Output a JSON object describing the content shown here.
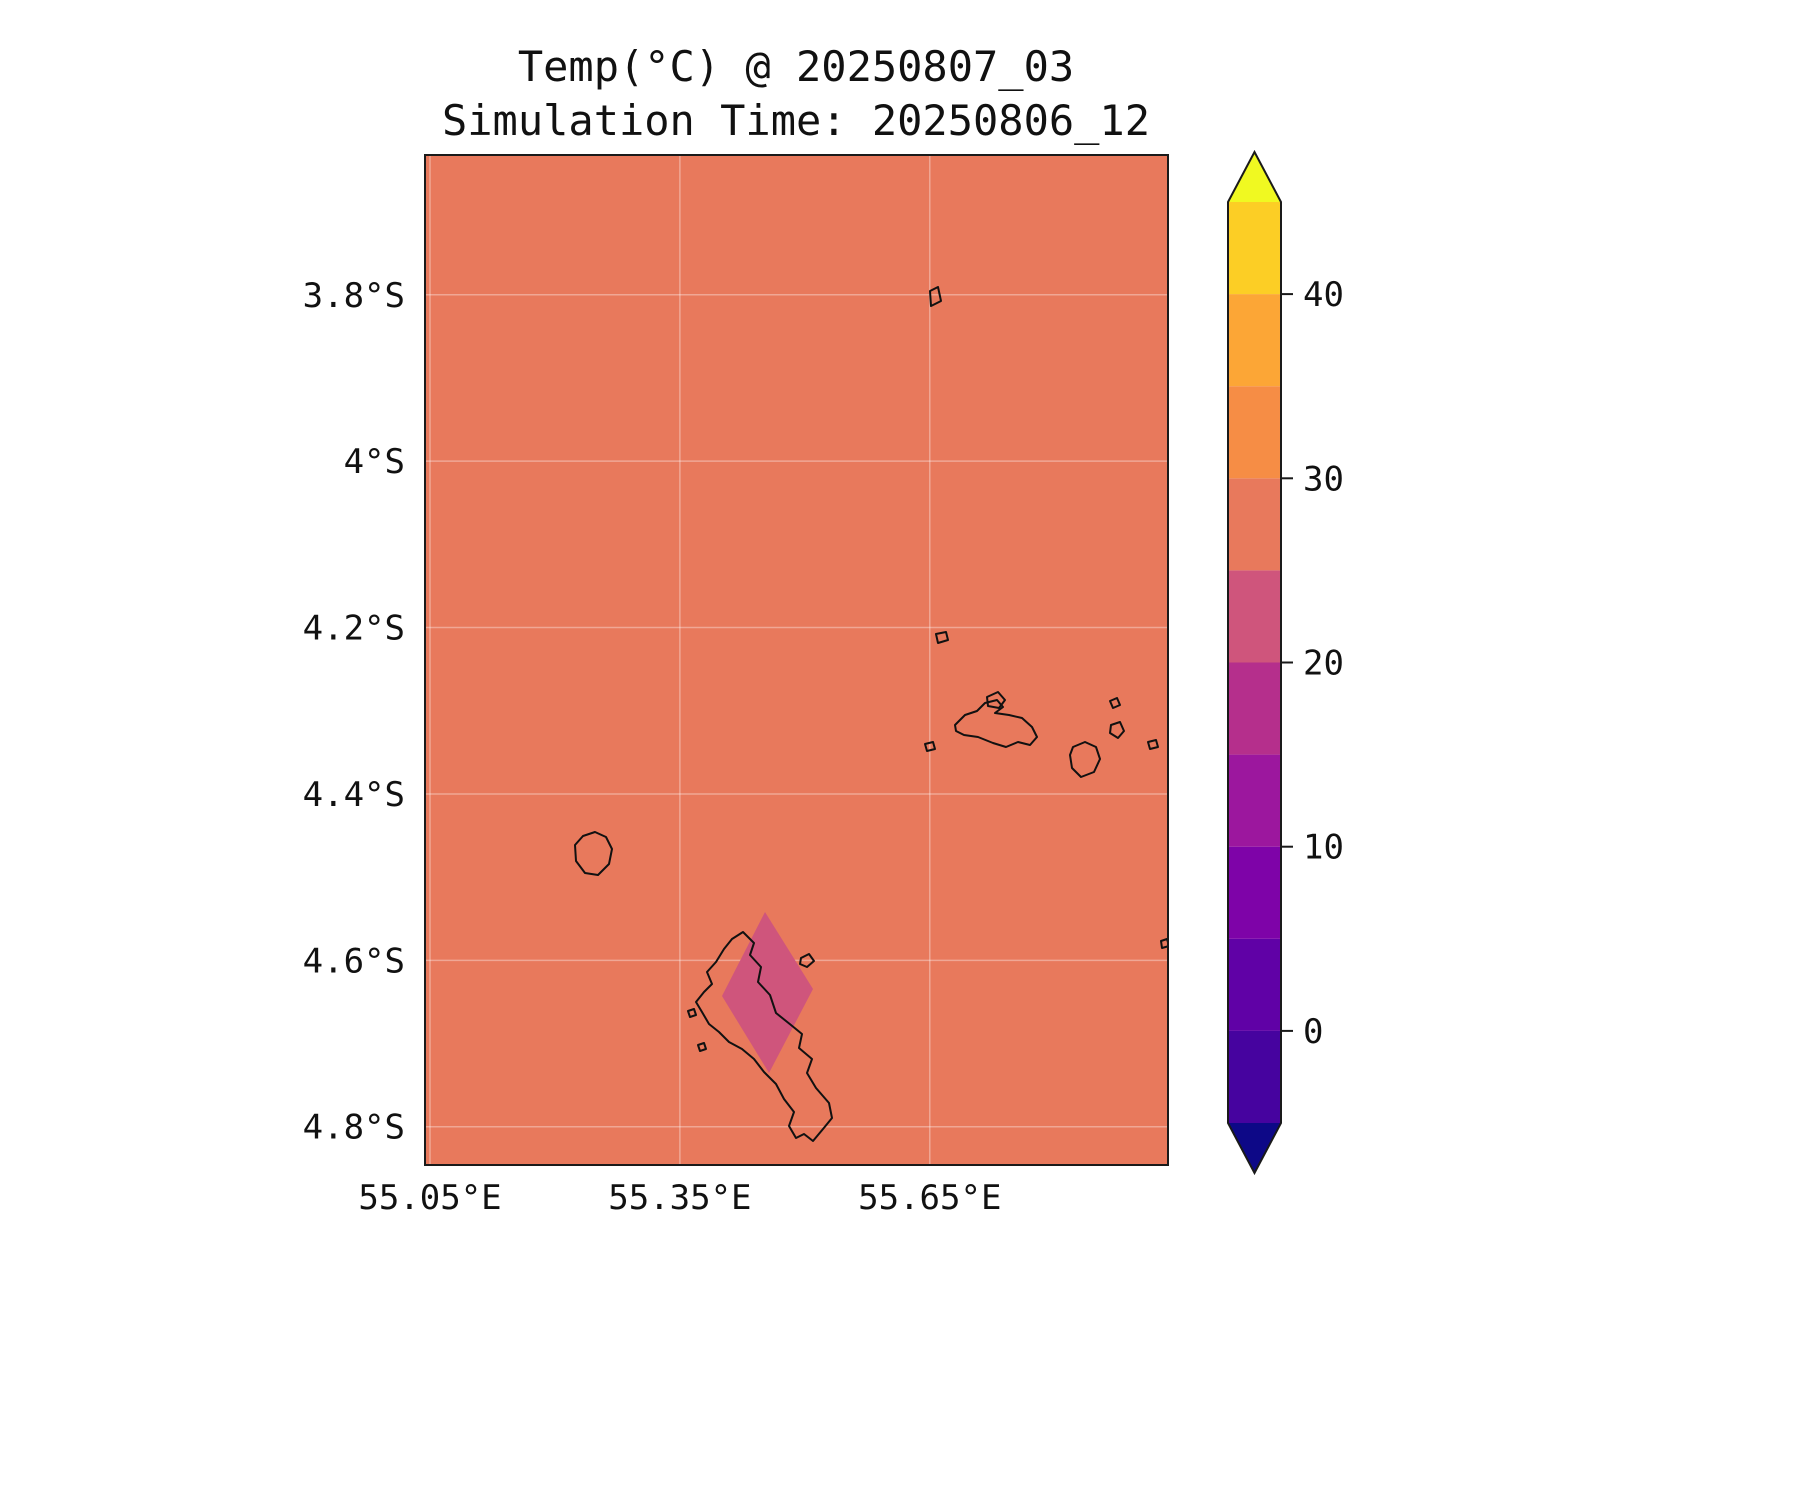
{
  "chart_data": {
    "type": "heatmap",
    "title": "Temp(°C) @ 20250807_03",
    "subtitle": "Simulation Time: 20250806_12",
    "variable_label": "Temp(°C)",
    "valid_time_label": "20250807_03",
    "simulation_time_label": "20250806_12",
    "legend_position": "right",
    "grid": true,
    "x_axis": {
      "range": [
        55.044,
        55.936
      ],
      "ticks": [
        {
          "value": 55.05,
          "label": "55.05°E"
        },
        {
          "value": 55.35,
          "label": "55.35°E"
        },
        {
          "value": 55.65,
          "label": "55.65°E"
        }
      ]
    },
    "y_axis": {
      "range": [
        -4.846,
        -3.632
      ],
      "ticks": [
        {
          "value": -3.8,
          "label": "3.8°S"
        },
        {
          "value": -4.0,
          "label": "4°S"
        },
        {
          "value": -4.2,
          "label": "4.2°S"
        },
        {
          "value": -4.4,
          "label": "4.4°S"
        },
        {
          "value": -4.6,
          "label": "4.6°S"
        },
        {
          "value": -4.8,
          "label": "4.8°S"
        }
      ]
    },
    "colorbar": {
      "extend": "both",
      "levels": [
        -5,
        0,
        5,
        10,
        15,
        20,
        25,
        30,
        35,
        40,
        45
      ],
      "band_colors": [
        "#46039f",
        "#6001a6",
        "#7e03a8",
        "#9c179e",
        "#b52f8c",
        "#cf557c",
        "#e8795c",
        "#f68d45",
        "#fca636",
        "#fcce25"
      ],
      "under_color": "#0d0887",
      "over_color": "#f0f921",
      "tick_values": [
        0,
        10,
        20,
        30,
        40
      ],
      "tick_labels": [
        "0",
        "10",
        "20",
        "30",
        "40"
      ]
    },
    "field_summary": {
      "dominant_band": "25-30 °C",
      "dominant_color": "#e8795c",
      "cool_patch": {
        "band": "20-25 °C",
        "color": "#cf557c",
        "approx_center_lon": 55.455,
        "approx_center_lat": -4.655
      }
    }
  },
  "map": {
    "sea_color": "#e8795c",
    "coastline_color": "#111111",
    "graticule_color": "rgba(255,255,255,0.35)",
    "cool_patch_color": "#cf557c",
    "cool_patch_polygon": [
      [
        340,
        757
      ],
      [
        388,
        834
      ],
      [
        344,
        918
      ],
      [
        297,
        841
      ]
    ],
    "islands": [
      {
        "id": "islet-north",
        "points": [
          [
            505,
            136
          ],
          [
            513,
            132
          ],
          [
            516,
            146
          ],
          [
            506,
            151
          ]
        ]
      },
      {
        "id": "islet-mid",
        "points": [
          [
            511,
            479
          ],
          [
            521,
            477
          ],
          [
            523,
            485
          ],
          [
            513,
            488
          ]
        ]
      },
      {
        "id": "islet-curieuse",
        "points": [
          [
            562,
            542
          ],
          [
            573,
            537
          ],
          [
            580,
            545
          ],
          [
            574,
            553
          ],
          [
            563,
            551
          ]
        ]
      },
      {
        "id": "island-praslin",
        "points": [
          [
            530,
            570
          ],
          [
            540,
            560
          ],
          [
            552,
            556
          ],
          [
            560,
            548
          ],
          [
            572,
            545
          ],
          [
            578,
            552
          ],
          [
            570,
            558
          ],
          [
            584,
            560
          ],
          [
            597,
            563
          ],
          [
            607,
            572
          ],
          [
            612,
            582
          ],
          [
            605,
            590
          ],
          [
            593,
            587
          ],
          [
            581,
            592
          ],
          [
            568,
            588
          ],
          [
            553,
            582
          ],
          [
            539,
            580
          ],
          [
            531,
            576
          ]
        ]
      },
      {
        "id": "islet-cousin",
        "points": [
          [
            500,
            589
          ],
          [
            508,
            587
          ],
          [
            510,
            594
          ],
          [
            502,
            596
          ]
        ]
      },
      {
        "id": "island-ladigue",
        "points": [
          [
            648,
            592
          ],
          [
            660,
            587
          ],
          [
            671,
            592
          ],
          [
            675,
            604
          ],
          [
            669,
            617
          ],
          [
            656,
            622
          ],
          [
            647,
            613
          ],
          [
            645,
            600
          ]
        ]
      },
      {
        "id": "islet-a",
        "points": [
          [
            685,
            546
          ],
          [
            692,
            543
          ],
          [
            695,
            550
          ],
          [
            688,
            553
          ]
        ]
      },
      {
        "id": "islet-b",
        "points": [
          [
            686,
            570
          ],
          [
            695,
            567
          ],
          [
            699,
            576
          ],
          [
            693,
            583
          ],
          [
            685,
            578
          ]
        ]
      },
      {
        "id": "islet-c",
        "points": [
          [
            723,
            587
          ],
          [
            731,
            585
          ],
          [
            733,
            592
          ],
          [
            725,
            594
          ]
        ]
      },
      {
        "id": "island-silhouette",
        "points": [
          [
            150,
            690
          ],
          [
            158,
            681
          ],
          [
            170,
            677
          ],
          [
            181,
            682
          ],
          [
            187,
            694
          ],
          [
            184,
            709
          ],
          [
            173,
            720
          ],
          [
            160,
            718
          ],
          [
            151,
            706
          ]
        ]
      },
      {
        "id": "island-mahe",
        "points": [
          [
            318,
            777
          ],
          [
            329,
            788
          ],
          [
            325,
            800
          ],
          [
            336,
            812
          ],
          [
            333,
            827
          ],
          [
            345,
            840
          ],
          [
            351,
            858
          ],
          [
            366,
            870
          ],
          [
            377,
            879
          ],
          [
            374,
            893
          ],
          [
            387,
            904
          ],
          [
            382,
            918
          ],
          [
            391,
            933
          ],
          [
            404,
            948
          ],
          [
            407,
            963
          ],
          [
            398,
            974
          ],
          [
            388,
            986
          ],
          [
            379,
            979
          ],
          [
            371,
            983
          ],
          [
            364,
            971
          ],
          [
            369,
            957
          ],
          [
            359,
            944
          ],
          [
            351,
            929
          ],
          [
            339,
            917
          ],
          [
            329,
            904
          ],
          [
            317,
            894
          ],
          [
            304,
            887
          ],
          [
            294,
            877
          ],
          [
            284,
            869
          ],
          [
            277,
            857
          ],
          [
            271,
            847
          ],
          [
            279,
            837
          ],
          [
            287,
            829
          ],
          [
            282,
            817
          ],
          [
            291,
            807
          ],
          [
            299,
            794
          ],
          [
            307,
            784
          ]
        ]
      },
      {
        "id": "islet-steanne",
        "points": [
          [
            376,
            803
          ],
          [
            384,
            799
          ],
          [
            389,
            806
          ],
          [
            382,
            812
          ],
          [
            375,
            809
          ]
        ]
      },
      {
        "id": "islet-west-a",
        "points": [
          [
            263,
            856
          ],
          [
            269,
            854
          ],
          [
            271,
            860
          ],
          [
            265,
            862
          ]
        ]
      },
      {
        "id": "islet-west-b",
        "points": [
          [
            273,
            890
          ],
          [
            279,
            888
          ],
          [
            281,
            894
          ],
          [
            275,
            896
          ]
        ]
      },
      {
        "id": "islet-edge",
        "points": [
          [
            736,
            786
          ],
          [
            742,
            784
          ],
          [
            744,
            791
          ],
          [
            737,
            793
          ]
        ]
      }
    ]
  }
}
